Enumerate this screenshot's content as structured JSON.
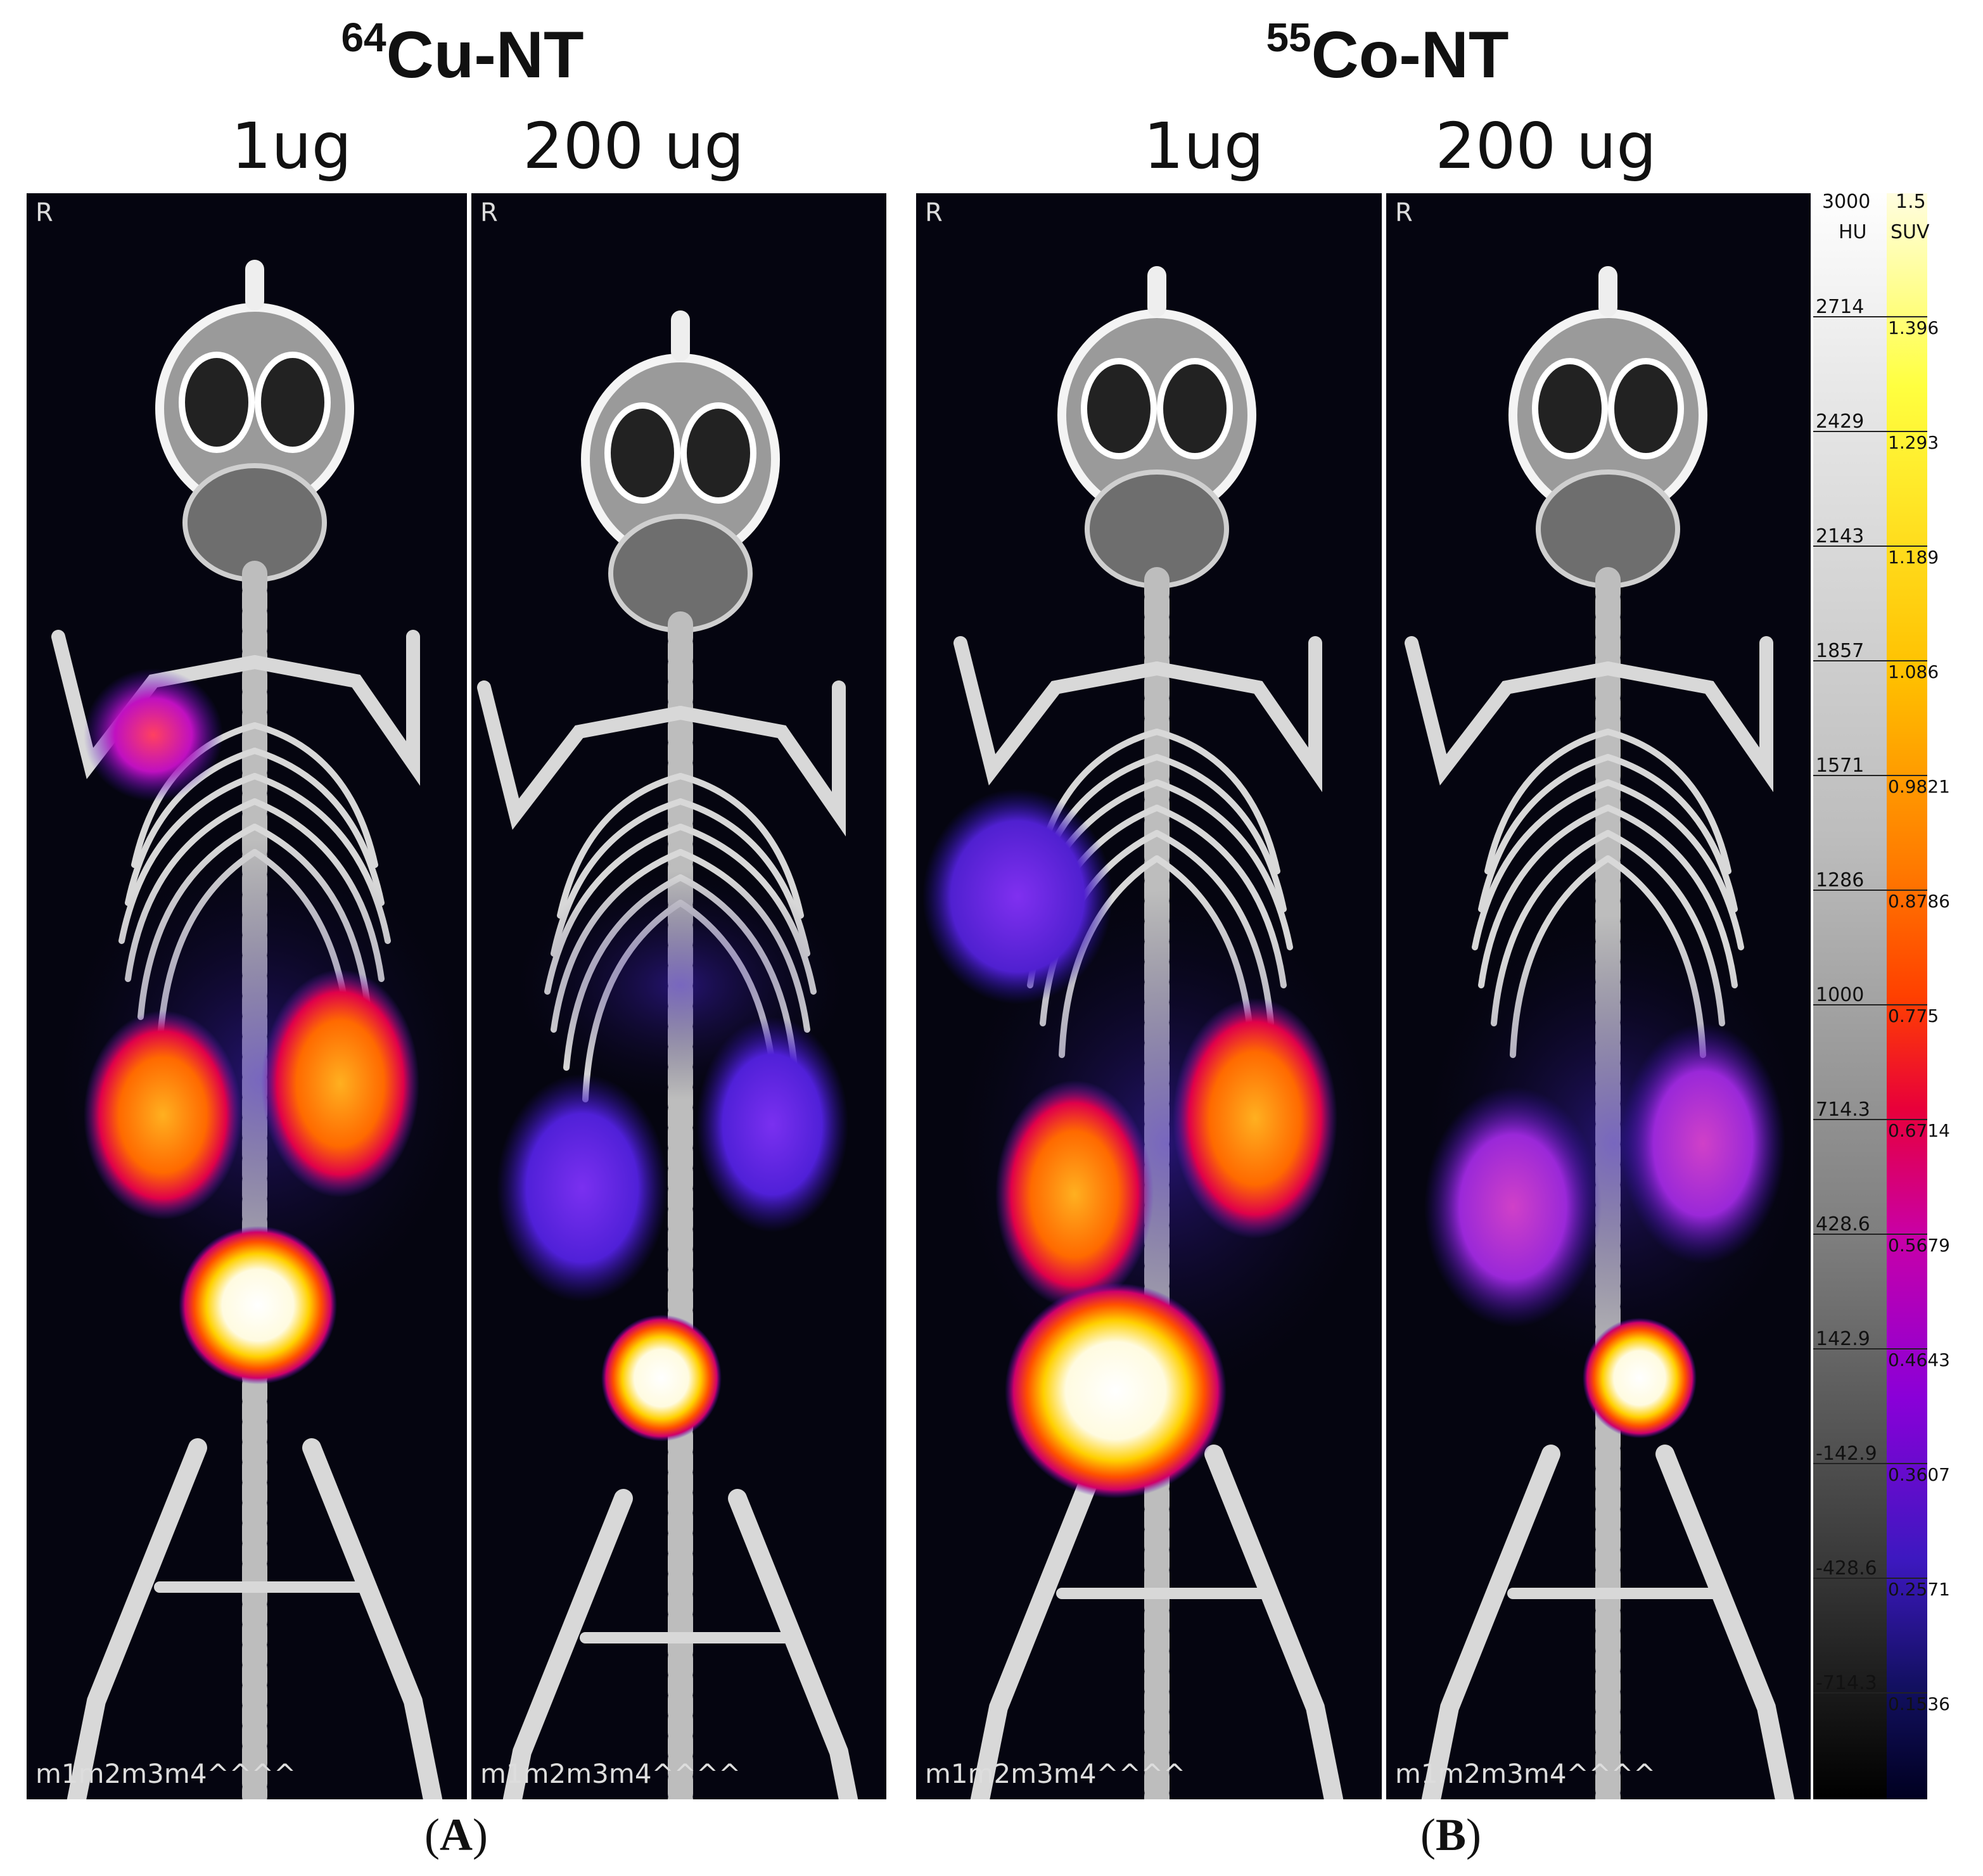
{
  "groups": [
    {
      "isotope_mass": "64",
      "tracer": "Cu-NT",
      "doses": [
        "1ug",
        "200 ug"
      ],
      "label": "A"
    },
    {
      "isotope_mass": "55",
      "tracer": "Co-NT",
      "doses": [
        "1ug",
        "200 ug"
      ],
      "label": "B"
    }
  ],
  "panel_orientation_mark": "R",
  "panel_animal_id": "m1m2m3m4^^^^",
  "colorbar": {
    "hu_max": "3000",
    "hu_unit": "HU",
    "suv_max": "1.5",
    "suv_unit": "SUV",
    "hu_ticks": [
      "2714",
      "2429",
      "2143",
      "1857",
      "1571",
      "1286",
      "1000",
      "714.3",
      "428.6",
      "142.9",
      "-142.9",
      "-428.6",
      "-714.3"
    ],
    "suv_ticks": [
      "1.396",
      "1.293",
      "1.189",
      "1.086",
      "0.9821",
      "0.8786",
      "0.775",
      "0.6714",
      "0.5679",
      "0.4643",
      "0.3607",
      "0.2571",
      "0.1536"
    ],
    "colors": {
      "suv_high": "#ffff40",
      "suv_mid": "#ff4000",
      "suv_low": "#3d18c0"
    }
  }
}
